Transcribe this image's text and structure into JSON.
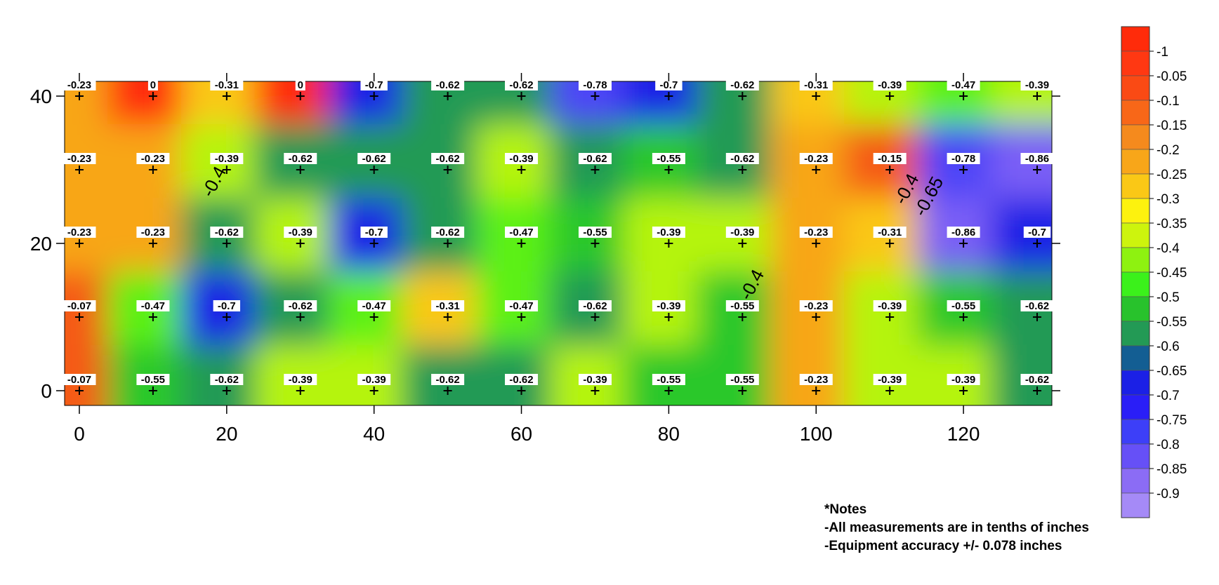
{
  "chart_data": {
    "type": "heatmap",
    "title": "",
    "xlabel": "",
    "ylabel": "",
    "xlim": [
      -2,
      132
    ],
    "ylim": [
      -2,
      42
    ],
    "x_ticks": [
      0,
      20,
      40,
      60,
      80,
      100,
      120
    ],
    "y_ticks": [
      0,
      20,
      40
    ],
    "grid": false,
    "points_x": [
      0,
      10,
      20,
      30,
      40,
      50,
      60,
      70,
      80,
      90,
      100,
      110,
      120,
      130
    ],
    "points_y": [
      40,
      30,
      20,
      10,
      0
    ],
    "values": [
      [
        -0.23,
        0,
        -0.31,
        0,
        -0.7,
        -0.62,
        -0.62,
        -0.78,
        -0.7,
        -0.62,
        -0.31,
        -0.39,
        -0.47,
        -0.39
      ],
      [
        -0.23,
        -0.23,
        -0.39,
        -0.62,
        -0.62,
        -0.62,
        -0.39,
        -0.62,
        -0.55,
        -0.62,
        -0.23,
        -0.15,
        -0.78,
        -0.86
      ],
      [
        -0.23,
        -0.23,
        -0.62,
        -0.39,
        -0.7,
        -0.62,
        -0.47,
        -0.55,
        -0.39,
        -0.39,
        -0.23,
        -0.31,
        -0.86,
        -0.7
      ],
      [
        -0.07,
        -0.47,
        -0.7,
        -0.62,
        -0.47,
        -0.31,
        -0.47,
        -0.62,
        -0.39,
        -0.55,
        -0.23,
        -0.39,
        -0.55,
        -0.62
      ],
      [
        -0.07,
        -0.55,
        -0.62,
        -0.39,
        -0.39,
        -0.62,
        -0.62,
        -0.39,
        -0.55,
        -0.55,
        -0.23,
        -0.39,
        -0.39,
        -0.62
      ]
    ],
    "value_labels": [
      [
        "-0.23",
        "0",
        "-0.31",
        "0",
        "-0.7",
        "-0.62",
        "-0.62",
        "-0.78",
        "-0.7",
        "-0.62",
        "-0.31",
        "-0.39",
        "-0.47",
        "-0.39"
      ],
      [
        "-0.23",
        "-0.23",
        "-0.39",
        "-0.62",
        "-0.62",
        "-0.62",
        "-0.39",
        "-0.62",
        "-0.55",
        "-0.62",
        "-0.23",
        "-0.15",
        "-0.78",
        "-0.86"
      ],
      [
        "-0.23",
        "-0.23",
        "-0.62",
        "-0.39",
        "-0.7",
        "-0.62",
        "-0.47",
        "-0.55",
        "-0.39",
        "-0.39",
        "-0.23",
        "-0.31",
        "-0.86",
        "-0.7"
      ],
      [
        "-0.07",
        "-0.47",
        "-0.7",
        "-0.62",
        "-0.47",
        "-0.31",
        "-0.47",
        "-0.62",
        "-0.39",
        "-0.55",
        "-0.23",
        "-0.39",
        "-0.55",
        "-0.62"
      ],
      [
        "-0.07",
        "-0.55",
        "-0.62",
        "-0.39",
        "-0.39",
        "-0.62",
        "-0.62",
        "-0.39",
        "-0.55",
        "-0.55",
        "-0.23",
        "-0.39",
        "-0.39",
        "-0.62"
      ]
    ],
    "contour_labels": [
      {
        "text": "-0.4",
        "x": 19,
        "y": 28
      },
      {
        "text": "-0.4",
        "x": 92,
        "y": 14
      },
      {
        "text": "-0.4",
        "x": 113,
        "y": 27
      },
      {
        "text": "-0.65",
        "x": 116,
        "y": 26
      }
    ],
    "colorbar": {
      "labels": [
        "-1",
        "-0.05",
        "-0.1",
        "-0.15",
        "-0.2",
        "-0.25",
        "-0.3",
        "-0.35",
        "-0.4",
        "-0.45",
        "-0.5",
        "-0.55",
        "-0.6",
        "-0.65",
        "-0.7",
        "-0.75",
        "-0.8",
        "-0.85",
        "-0.9"
      ],
      "colors": [
        "#ff2b0a",
        "#ff3812",
        "#fa4a14",
        "#f86718",
        "#f58a1d",
        "#f8a619",
        "#fac816",
        "#fdf20e",
        "#cdf40d",
        "#8ef210",
        "#3bf11b",
        "#28c22c",
        "#239a55",
        "#135e93",
        "#1b20e6",
        "#2a1ef7",
        "#3d3ff8",
        "#6650f7",
        "#8b6cf5",
        "#a58af7"
      ]
    }
  },
  "notes": {
    "heading": "*Notes",
    "line1": "-All measurements are in tenths of inches",
    "line2": "-Equipment accuracy +/- 0.078 inches"
  }
}
